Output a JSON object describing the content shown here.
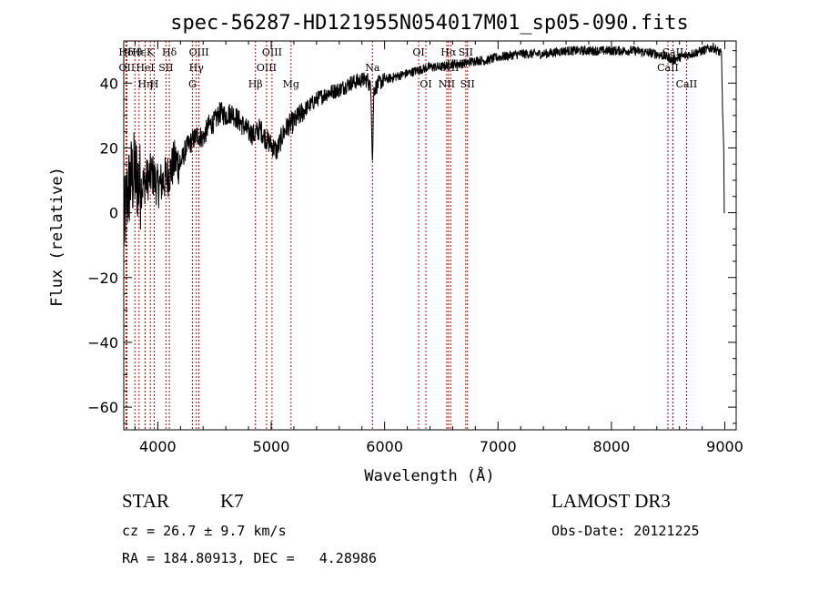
{
  "chart_data": {
    "type": "line",
    "title": "spec-56287-HD121955N054017M01_sp05-090.fits",
    "xlabel": "Wavelength (Å)",
    "ylabel": "Flux (relative)",
    "xlim": [
      3700,
      9100
    ],
    "ylim": [
      -67,
      53
    ],
    "xticks": [
      4000,
      5000,
      6000,
      7000,
      8000,
      9000
    ],
    "yticks": [
      -60,
      -40,
      -20,
      0,
      20,
      40
    ],
    "grid": false,
    "spectrum_anchor_points": {
      "x": [
        3700,
        3730,
        3760,
        3800,
        3850,
        3900,
        3950,
        4000,
        4050,
        4100,
        4150,
        4200,
        4250,
        4300,
        4350,
        4400,
        4450,
        4500,
        4550,
        4600,
        4650,
        4700,
        4750,
        4800,
        4850,
        4900,
        4950,
        5000,
        5050,
        5100,
        5150,
        5200,
        5250,
        5300,
        5400,
        5500,
        5600,
        5700,
        5800,
        5850,
        5880,
        5893,
        5905,
        5950,
        6000,
        6100,
        6200,
        6300,
        6400,
        6500,
        6600,
        6700,
        6800,
        6900,
        7000,
        7200,
        7400,
        7600,
        7800,
        8000,
        8200,
        8400,
        8500,
        8540,
        8600,
        8700,
        8800,
        8900,
        8970,
        9000
      ],
      "y": [
        -5,
        5,
        10,
        12,
        8,
        10,
        12,
        8,
        10,
        12,
        16,
        15,
        20,
        22,
        24,
        23,
        27,
        28,
        31,
        30,
        31,
        29,
        27,
        25,
        24,
        26,
        23,
        21,
        19,
        24,
        27,
        28,
        30,
        32,
        35,
        37,
        38,
        40,
        41,
        41,
        38,
        15,
        38,
        40,
        41,
        42,
        43,
        44,
        45,
        45,
        46,
        46,
        47,
        47,
        48,
        49,
        49,
        50,
        50,
        50,
        50,
        49,
        48,
        47,
        48,
        49,
        50,
        51,
        49,
        0
      ]
    },
    "spectral_lines": [
      {
        "name": "Hδ",
        "x": 3720,
        "row": 1
      },
      {
        "name": "OII",
        "x": 3727,
        "row": 2
      },
      {
        "name": "Hθ",
        "x": 3798,
        "row": 1
      },
      {
        "name": "Hε",
        "x": 3835,
        "row": 1
      },
      {
        "name": "HeI",
        "x": 3889,
        "row": 2
      },
      {
        "name": "K",
        "x": 3934,
        "row": 1
      },
      {
        "name": "H",
        "x": 3969,
        "row": 3
      },
      {
        "name": "SII",
        "x": 4072,
        "row": 2
      },
      {
        "name": "Hδ",
        "x": 4102,
        "row": 1
      },
      {
        "name": "Hη",
        "x": 3889,
        "row": 3
      },
      {
        "name": "G",
        "x": 4305,
        "row": 3
      },
      {
        "name": "Hγ",
        "x": 4340,
        "row": 2
      },
      {
        "name": "OIII",
        "x": 4363,
        "row": 1
      },
      {
        "name": "Hβ",
        "x": 4861,
        "row": 3
      },
      {
        "name": "OIII",
        "x": 4959,
        "row": 2
      },
      {
        "name": "OIII",
        "x": 5007,
        "row": 1
      },
      {
        "name": "Mg",
        "x": 5175,
        "row": 3
      },
      {
        "name": "Na",
        "x": 5893,
        "row": 2
      },
      {
        "name": "OI",
        "x": 6300,
        "row": 1
      },
      {
        "name": "OI",
        "x": 6364,
        "row": 3
      },
      {
        "name": "NII",
        "x": 6548,
        "row": 3
      },
      {
        "name": "Hα",
        "x": 6563,
        "row": 1
      },
      {
        "name": "NII",
        "x": 6583,
        "row": 2
      },
      {
        "name": "SII",
        "x": 6716,
        "row": 1
      },
      {
        "name": "SII",
        "x": 6731,
        "row": 3
      },
      {
        "name": "CaII",
        "x": 8498,
        "row": 2
      },
      {
        "name": "CaII",
        "x": 8542,
        "row": 1
      },
      {
        "name": "CaII",
        "x": 8662,
        "row": 3
      }
    ]
  },
  "info": {
    "object_class": "STAR",
    "subclass": "K7",
    "survey": "LAMOST DR3",
    "redshift": "cz = 26.7 ± 9.7 km/s",
    "obs_date": "Obs-Date: 20121225",
    "coords": "RA = 184.80913, DEC =   4.28986"
  },
  "colors": {
    "spectrum": "#000000",
    "line_markers": "#cc0000"
  }
}
